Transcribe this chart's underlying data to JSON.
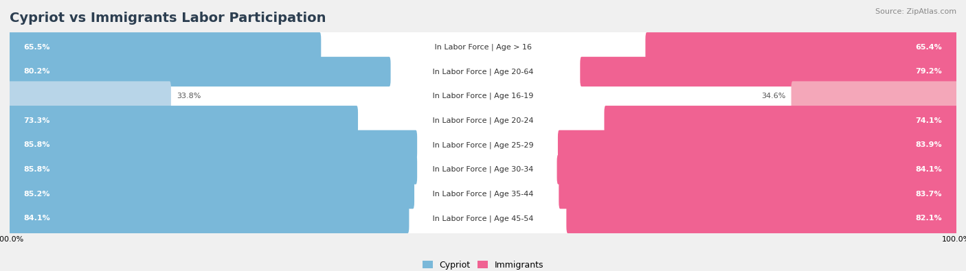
{
  "title": "Cypriot vs Immigrants Labor Participation",
  "source": "Source: ZipAtlas.com",
  "categories": [
    "In Labor Force | Age > 16",
    "In Labor Force | Age 20-64",
    "In Labor Force | Age 16-19",
    "In Labor Force | Age 20-24",
    "In Labor Force | Age 25-29",
    "In Labor Force | Age 30-34",
    "In Labor Force | Age 35-44",
    "In Labor Force | Age 45-54"
  ],
  "cypriot_values": [
    65.5,
    80.2,
    33.8,
    73.3,
    85.8,
    85.8,
    85.2,
    84.1
  ],
  "immigrant_values": [
    65.4,
    79.2,
    34.6,
    74.1,
    83.9,
    84.1,
    83.7,
    82.1
  ],
  "cypriot_color": "#7ab8d9",
  "cypriot_light_color": "#b8d5e8",
  "immigrant_color": "#f06292",
  "immigrant_light_color": "#f4a7b9",
  "background_color": "#f0f0f0",
  "row_bg_light": "#e8e8ec",
  "row_bg_white": "#ffffff",
  "max_value": 100.0,
  "title_fontsize": 14,
  "label_fontsize": 8,
  "value_fontsize": 8,
  "legend_fontsize": 9
}
